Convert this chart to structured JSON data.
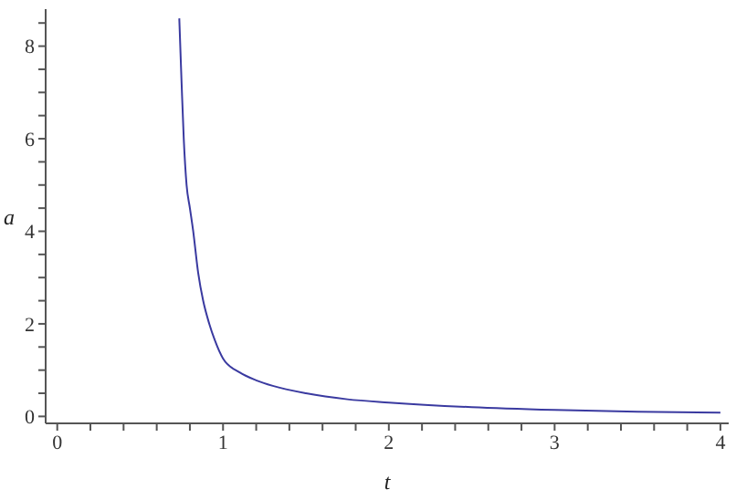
{
  "chart_data": {
    "type": "line",
    "xlabel": "t",
    "ylabel": "a",
    "x": [
      0.736,
      0.75,
      0.763,
      0.78,
      0.8,
      0.82,
      0.85,
      0.88,
      0.917,
      0.95,
      1.0,
      1.1,
      1.2,
      1.3,
      1.5,
      1.75,
      2,
      2.5,
      3,
      3.5,
      4
    ],
    "series": [
      {
        "color": "#3a3aa0",
        "values": [
          8.6,
          7.2,
          6.0,
          5.0,
          4.5,
          4.0,
          3.1,
          2.5,
          2.0,
          1.65,
          1.25,
          0.95,
          0.78,
          0.66,
          0.5,
          0.37,
          0.3,
          0.2,
          0.14,
          0.1,
          0.08
        ]
      }
    ],
    "xlim": [
      -0.07,
      4.05
    ],
    "ylim": [
      -0.15,
      8.8
    ],
    "xticks": [
      0,
      {
        "value": 0.2,
        "label": null
      },
      {
        "value": 0.4,
        "label": null
      },
      {
        "value": 0.6,
        "label": null
      },
      {
        "value": 0.8,
        "label": null
      },
      1,
      {
        "value": 1.2,
        "label": null
      },
      {
        "value": 1.4,
        "label": null
      },
      {
        "value": 1.6,
        "label": null
      },
      {
        "value": 1.8,
        "label": null
      },
      2,
      {
        "value": 2.2,
        "label": null
      },
      {
        "value": 2.4,
        "label": null
      },
      {
        "value": 2.6,
        "label": null
      },
      {
        "value": 2.8,
        "label": null
      },
      3,
      {
        "value": 3.2,
        "label": null
      },
      {
        "value": 3.4,
        "label": null
      },
      {
        "value": 3.6,
        "label": null
      },
      {
        "value": 3.8,
        "label": null
      },
      4
    ],
    "yticks": [
      0,
      {
        "value": 0.5,
        "label": null
      },
      {
        "value": 1,
        "label": null
      },
      {
        "value": 1.5,
        "label": null
      },
      2,
      {
        "value": 2.5,
        "label": null
      },
      {
        "value": 3,
        "label": null
      },
      {
        "value": 3.5,
        "label": null
      },
      4,
      {
        "value": 4.5,
        "label": null
      },
      {
        "value": 5,
        "label": null
      },
      {
        "value": 5.5,
        "label": null
      },
      6,
      {
        "value": 6.5,
        "label": null
      },
      {
        "value": 7,
        "label": null
      },
      {
        "value": 7.5,
        "label": null
      },
      8,
      {
        "value": 8.5,
        "label": null
      }
    ],
    "grid": false,
    "legend": false,
    "marker": "none",
    "line_style": "solid"
  }
}
